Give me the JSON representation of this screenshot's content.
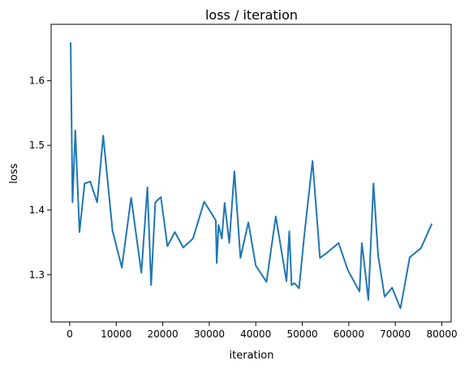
{
  "chart_data": {
    "type": "line",
    "title": "loss / iteration",
    "xlabel": "iteration",
    "ylabel": "loss",
    "xlim": [
      -4000,
      82000
    ],
    "ylim": [
      1.227,
      1.687
    ],
    "grid": false,
    "xticks": [
      0,
      10000,
      20000,
      30000,
      40000,
      50000,
      60000,
      70000,
      80000
    ],
    "xtick_labels": [
      "0",
      "10000",
      "20000",
      "30000",
      "40000",
      "50000",
      "60000",
      "70000",
      "80000"
    ],
    "yticks": [
      1.3,
      1.4,
      1.5,
      1.6
    ],
    "ytick_labels": [
      "1.3",
      "1.4",
      "1.5",
      "1.6"
    ],
    "line_color": "#1f77b4",
    "series": [
      {
        "x": [
          200,
          600,
          1200,
          2100,
          3200,
          4400,
          5900,
          7200,
          9200,
          11200,
          13200,
          15400,
          16700,
          17500,
          18400,
          19600,
          21000,
          22600,
          24400,
          26500,
          28900,
          31400,
          31600,
          32000,
          32700,
          33300,
          34300,
          35400,
          36700,
          38400,
          40000,
          42300,
          44300,
          46600,
          47200,
          47700,
          48300,
          49300,
          50400,
          52200,
          53800,
          55300,
          57800,
          59800,
          62300,
          62800,
          63300,
          64200,
          65300,
          66300,
          67700,
          69300,
          71100,
          73100,
          75500,
          77800
        ],
        "y": [
          1.658,
          1.412,
          1.523,
          1.366,
          1.441,
          1.444,
          1.412,
          1.515,
          1.368,
          1.311,
          1.419,
          1.303,
          1.435,
          1.284,
          1.412,
          1.42,
          1.344,
          1.366,
          1.342,
          1.356,
          1.413,
          1.384,
          1.318,
          1.377,
          1.356,
          1.411,
          1.349,
          1.46,
          1.326,
          1.381,
          1.314,
          1.289,
          1.39,
          1.29,
          1.367,
          1.284,
          1.287,
          1.279,
          1.359,
          1.476,
          1.326,
          1.334,
          1.349,
          1.307,
          1.274,
          1.349,
          1.319,
          1.261,
          1.441,
          1.33,
          1.266,
          1.28,
          1.248,
          1.327,
          1.341,
          1.378
        ]
      }
    ]
  }
}
